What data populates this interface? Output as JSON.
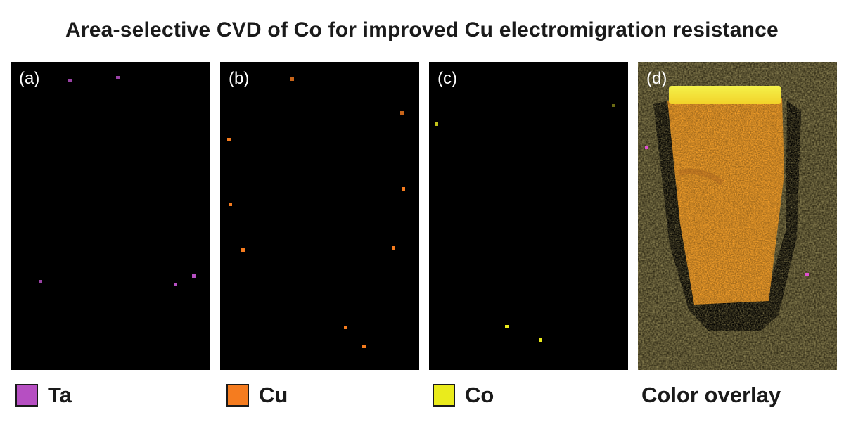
{
  "figure": {
    "title": "Area-selective CVD of Co for improved Cu electromigration resistance"
  },
  "panels": [
    {
      "label": "(a)",
      "element": "Ta",
      "color": "#b64fc2"
    },
    {
      "label": "(b)",
      "element": "Cu",
      "color": "#f57c1f"
    },
    {
      "label": "(c)",
      "element": "Co",
      "color": "#eaeb1c"
    },
    {
      "label": "(d)",
      "element": "overlay",
      "color": "#f59a2a"
    }
  ],
  "legend": [
    {
      "text": "Ta",
      "color": "#b64fc2",
      "has_swatch": true
    },
    {
      "text": "Cu",
      "color": "#f57c1f",
      "has_swatch": true
    },
    {
      "text": "Co",
      "color": "#eaeb1c",
      "has_swatch": true
    },
    {
      "text": "Color overlay",
      "has_swatch": false
    }
  ]
}
